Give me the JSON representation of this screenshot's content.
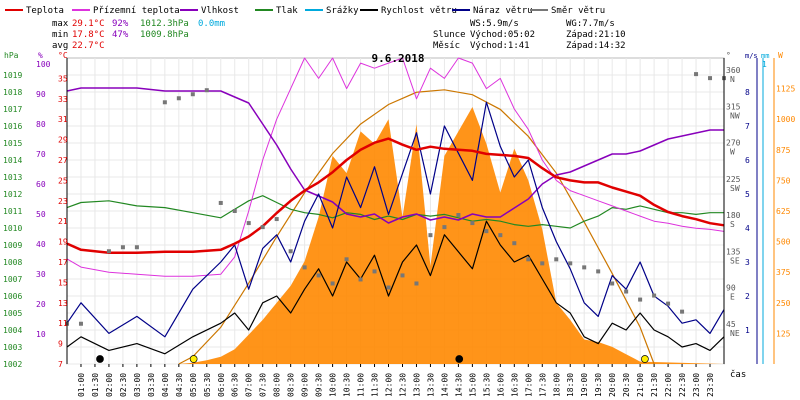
{
  "date_title": "9.6.2018",
  "legend": [
    {
      "label": "Teplota",
      "color": "#e00000"
    },
    {
      "label": "Přízemní teplota",
      "color": "#dd33dd"
    },
    {
      "label": "Vlhkost",
      "color": "#8800bb"
    },
    {
      "label": "Tlak",
      "color": "#228822"
    },
    {
      "label": "Srážky",
      "color": "#00aadd"
    },
    {
      "label": "Rychlost větru",
      "color": "#000000"
    },
    {
      "label": "Náraz větru",
      "color": "#000088"
    },
    {
      "label": "Směr větru",
      "color": "#777777"
    }
  ],
  "stats": {
    "max": {
      "label": "max",
      "temp": "29.1°C",
      "hum": "92%",
      "press": "1012.3hPa",
      "rain": "0.0mm"
    },
    "min": {
      "label": "min",
      "temp": "17.8°C",
      "hum": "47%",
      "press": "1009.8hPa"
    },
    "avg": {
      "label": "avg",
      "temp": "22.7°C"
    }
  },
  "wind_info": {
    "ws": "WS:5.9m/s",
    "wg": "WG:7.7m/s"
  },
  "sun": {
    "label": "Slunce",
    "rise": "Východ:05:02",
    "set": "Západ:21:10"
  },
  "moon": {
    "label": "Měsíc",
    "rise": "Východ:1:41",
    "set": "Západ:14:32"
  },
  "colors": {
    "temp": "#e00000",
    "ground": "#dd33dd",
    "hum": "#8800bb",
    "press": "#228822",
    "rain": "#00aadd",
    "wind": "#000000",
    "gust": "#000088",
    "dir": "#777777",
    "solar": "#ff8800",
    "grid": "#e8e8e8"
  },
  "chart_data": {
    "type": "line",
    "title": "9.6.2018",
    "xlabel": "čas",
    "x_ticks": [
      "01:00",
      "01:30",
      "02:00",
      "02:30",
      "03:00",
      "03:30",
      "04:00",
      "04:30",
      "05:00",
      "05:30",
      "06:00",
      "06:30",
      "07:00",
      "07:30",
      "08:00",
      "08:30",
      "09:00",
      "09:30",
      "10:00",
      "10:30",
      "11:00",
      "11:30",
      "12:00",
      "12:30",
      "13:00",
      "13:30",
      "14:00",
      "14:30",
      "15:00",
      "15:30",
      "16:00",
      "16:30",
      "17:00",
      "17:30",
      "18:00",
      "18:30",
      "19:00",
      "19:30",
      "20:00",
      "20:30",
      "21:00",
      "21:30",
      "22:00",
      "22:30",
      "23:00",
      "23:30"
    ],
    "axes": {
      "pressure": {
        "unit": "hPa",
        "range": [
          1002,
          1020
        ],
        "ticks": [
          "1002",
          "1003",
          "1004",
          "1005",
          "1006",
          "1007",
          "1008",
          "1009",
          "1010",
          "1011",
          "1012",
          "1013",
          "1014",
          "1015",
          "1016",
          "1017",
          "1018",
          "1019"
        ]
      },
      "humidity": {
        "unit": "%",
        "range": [
          0,
          102
        ],
        "ticks": [
          "10",
          "20",
          "30",
          "40",
          "50",
          "60",
          "70",
          "80",
          "90",
          "100"
        ]
      },
      "temperature": {
        "unit": "°C",
        "range": [
          7,
          37
        ],
        "ticks": [
          "7",
          "9",
          "11",
          "13",
          "15",
          "17",
          "19",
          "21",
          "23",
          "25",
          "27",
          "29",
          "31",
          "33",
          "35"
        ]
      },
      "direction": {
        "unit": "°",
        "range": [
          0,
          380
        ],
        "ticks": [
          {
            "v": "45",
            "d": "NE"
          },
          {
            "v": "90",
            "d": "E"
          },
          {
            "v": "135",
            "d": "SE"
          },
          {
            "v": "180",
            "d": "S"
          },
          {
            "v": "225",
            "d": "SW"
          },
          {
            "v": "270",
            "d": "W"
          },
          {
            "v": "315",
            "d": "NW"
          },
          {
            "v": "360",
            "d": "N"
          }
        ]
      },
      "wind": {
        "unit": "m/s",
        "range": [
          0,
          9
        ],
        "ticks": [
          "1",
          "2",
          "3",
          "4",
          "5",
          "6",
          "7",
          "8"
        ]
      },
      "rain": {
        "unit": "mm",
        "range": [
          0,
          1
        ],
        "ticks": [
          "1"
        ]
      },
      "solar": {
        "unit": "W",
        "range": [
          0,
          1250
        ],
        "ticks": [
          "125",
          "250",
          "375",
          "500",
          "625",
          "750",
          "875",
          "1000",
          "1125"
        ]
      }
    },
    "series": [
      {
        "name": "Teplota",
        "axis": "temperature",
        "x": [
          0,
          1,
          2,
          3,
          4,
          5,
          6,
          6.5,
          7,
          7.5,
          8,
          8.5,
          9,
          9.5,
          10,
          10.5,
          11,
          11.5,
          12,
          12.5,
          13,
          13.5,
          14,
          14.5,
          15,
          15.5,
          16,
          16.5,
          17,
          17.5,
          18,
          18.5,
          19,
          19.5,
          20,
          20.5,
          21,
          21.5,
          22,
          22.5,
          23,
          23.5,
          24
        ],
        "y": [
          18.8,
          18.2,
          17.9,
          17.9,
          18.0,
          18.0,
          18.2,
          18.8,
          19.5,
          20.5,
          21.8,
          23.0,
          24.0,
          24.8,
          25.8,
          27.0,
          28.0,
          28.7,
          29.1,
          28.5,
          28.0,
          28.3,
          28.1,
          28.0,
          27.9,
          27.6,
          27.5,
          27.4,
          27.2,
          26.2,
          25.3,
          25.0,
          24.8,
          24.8,
          24.3,
          23.9,
          23.5,
          22.6,
          21.9,
          21.5,
          21.2,
          20.8,
          20.6
        ]
      },
      {
        "name": "Přízemní teplota",
        "axis": "temperature",
        "x": [
          0,
          1,
          2,
          3,
          4,
          5,
          6,
          6.5,
          7,
          7.5,
          8,
          8.5,
          9,
          9.5,
          10,
          10.5,
          11,
          11.5,
          12,
          12.5,
          13,
          13.5,
          14,
          14.5,
          15,
          15.5,
          16,
          16.5,
          17,
          17.5,
          18,
          18.5,
          19,
          19.5,
          20,
          20.5,
          21,
          21.5,
          22,
          22.5,
          23,
          23.5,
          24
        ],
        "y": [
          17.3,
          16.5,
          16.0,
          15.8,
          15.6,
          15.6,
          15.8,
          17.5,
          22.0,
          27.0,
          31.0,
          34.0,
          37.0,
          35.0,
          37.0,
          34.0,
          36.5,
          36.0,
          36.5,
          37.0,
          33.0,
          36.0,
          35.0,
          37.0,
          36.5,
          34.0,
          35.0,
          32.0,
          30.0,
          27.0,
          25.0,
          24.0,
          23.5,
          23.0,
          22.5,
          22.0,
          21.5,
          21.0,
          20.8,
          20.5,
          20.3,
          20.2,
          20.0
        ]
      },
      {
        "name": "Vlhkost",
        "axis": "humidity",
        "x": [
          0,
          1,
          2,
          3,
          4,
          5,
          6,
          6.5,
          7,
          7.5,
          8,
          8.5,
          9,
          9.5,
          10,
          10.5,
          11,
          11.5,
          12,
          12.5,
          13,
          13.5,
          14,
          14.5,
          15,
          15.5,
          16,
          16.5,
          17,
          17.5,
          18,
          18.5,
          19,
          19.5,
          20,
          20.5,
          21,
          21.5,
          22,
          22.5,
          23,
          23.5,
          24
        ],
        "y": [
          91,
          92,
          92,
          92,
          91,
          91,
          91,
          89,
          87,
          80,
          73,
          65,
          58,
          56,
          54,
          50,
          49,
          50,
          47,
          49,
          50,
          48,
          49,
          48,
          50,
          49,
          49,
          52,
          55,
          60,
          63,
          64,
          66,
          68,
          70,
          70,
          71,
          73,
          75,
          76,
          77,
          78,
          78
        ]
      },
      {
        "name": "Tlak",
        "axis": "pressure",
        "x": [
          0,
          1,
          2,
          3,
          4,
          5,
          6,
          6.5,
          7,
          7.5,
          8,
          8.5,
          9,
          9.5,
          10,
          10.5,
          11,
          11.5,
          12,
          12.5,
          13,
          13.5,
          14,
          14.5,
          15,
          15.5,
          16,
          16.5,
          17,
          17.5,
          18,
          18.5,
          19,
          19.5,
          20,
          20.5,
          21,
          21.5,
          22,
          22.5,
          23,
          23.5,
          24
        ],
        "y": [
          1011.2,
          1011.5,
          1011.6,
          1011.3,
          1011.2,
          1010.9,
          1010.6,
          1011.1,
          1011.6,
          1011.9,
          1011.5,
          1011.1,
          1010.9,
          1010.8,
          1010.6,
          1010.9,
          1010.8,
          1010.5,
          1010.7,
          1010.5,
          1010.8,
          1010.7,
          1010.8,
          1010.6,
          1010.4,
          1010.5,
          1010.4,
          1010.2,
          1010.1,
          1010.2,
          1010.1,
          1010.0,
          1010.4,
          1010.7,
          1011.2,
          1011.1,
          1011.3,
          1011.1,
          1010.9,
          1010.9,
          1010.8,
          1010.9,
          1010.9
        ]
      },
      {
        "name": "Rychlost větru",
        "axis": "wind",
        "x": [
          0,
          1,
          2,
          3,
          4,
          5,
          6,
          6.5,
          7,
          7.5,
          8,
          8.5,
          9,
          9.5,
          10,
          10.5,
          11,
          11.5,
          12,
          12.5,
          13,
          13.5,
          14,
          14.5,
          15,
          15.5,
          16,
          16.5,
          17,
          17.5,
          18,
          18.5,
          19,
          19.5,
          20,
          20.5,
          21,
          21.5,
          22,
          22.5,
          23,
          23.5,
          24
        ],
        "y": [
          0.5,
          0.8,
          0.4,
          0.6,
          0.3,
          0.8,
          1.2,
          1.5,
          1.0,
          1.8,
          2.0,
          1.5,
          2.2,
          2.8,
          2.0,
          3.0,
          2.5,
          3.2,
          2.0,
          3.0,
          3.5,
          2.6,
          3.8,
          3.3,
          2.8,
          4.2,
          3.5,
          3.0,
          3.2,
          2.5,
          1.8,
          1.5,
          0.8,
          0.6,
          1.2,
          1.0,
          1.5,
          1.0,
          0.8,
          0.5,
          0.6,
          0.4,
          0.8
        ]
      },
      {
        "name": "Náraz větru",
        "axis": "wind",
        "x": [
          0,
          1,
          2,
          3,
          4,
          5,
          6,
          6.5,
          7,
          7.5,
          8,
          8.5,
          9,
          9.5,
          10,
          10.5,
          11,
          11.5,
          12,
          12.5,
          13,
          13.5,
          14,
          14.5,
          15,
          15.5,
          16,
          16.5,
          17,
          17.5,
          18,
          18.5,
          19,
          19.5,
          20,
          20.5,
          21,
          21.5,
          22,
          22.5,
          23,
          23.5,
          24
        ],
        "y": [
          1.2,
          1.8,
          0.9,
          1.4,
          0.8,
          2.2,
          3.0,
          3.5,
          2.2,
          3.4,
          3.8,
          3.0,
          4.2,
          5.0,
          4.0,
          5.5,
          4.6,
          5.8,
          4.4,
          5.6,
          6.8,
          5.0,
          7.0,
          6.2,
          5.4,
          7.7,
          6.4,
          5.5,
          6.0,
          4.6,
          3.6,
          2.8,
          1.8,
          1.4,
          2.6,
          2.2,
          3.0,
          2.0,
          1.7,
          1.2,
          1.3,
          0.9,
          1.6
        ]
      },
      {
        "name": "Směr větru",
        "axis": "direction",
        "x": [
          0,
          1,
          2,
          2.5,
          3,
          4,
          4.5,
          5,
          5.5,
          6,
          6.5,
          7,
          7.5,
          8,
          8.5,
          9,
          9.5,
          10,
          10.5,
          11,
          11.5,
          12,
          12.5,
          13,
          13.5,
          14,
          14.5,
          15,
          15.5,
          16,
          16.5,
          17,
          17.5,
          18,
          18.5,
          19,
          19.5,
          20,
          20.5,
          21,
          21.5,
          22,
          22.5,
          23,
          23.5,
          24
        ],
        "y": [
          50,
          50,
          140,
          145,
          145,
          325,
          330,
          335,
          340,
          200,
          190,
          175,
          170,
          180,
          140,
          120,
          110,
          100,
          130,
          105,
          115,
          95,
          110,
          100,
          160,
          170,
          185,
          175,
          165,
          160,
          150,
          130,
          125,
          130,
          125,
          120,
          115,
          100,
          90,
          80,
          85,
          75,
          65,
          360,
          355,
          355
        ]
      },
      {
        "name": "Solar",
        "axis": "solar",
        "x": [
          0,
          4.5,
          5,
          5.5,
          6,
          6.5,
          7,
          7.5,
          8,
          8.5,
          9,
          9.5,
          10,
          10.5,
          11,
          11.5,
          12,
          12.5,
          13,
          13.5,
          14,
          14.5,
          15,
          15.5,
          16,
          16.5,
          17,
          17.5,
          18,
          18.5,
          19,
          19.5,
          20,
          20.5,
          21,
          24
        ],
        "y": [
          0,
          0,
          5,
          15,
          30,
          60,
          120,
          180,
          250,
          320,
          420,
          600,
          850,
          780,
          950,
          900,
          1000,
          600,
          980,
          400,
          850,
          950,
          1050,
          900,
          700,
          880,
          750,
          550,
          250,
          180,
          100,
          90,
          70,
          40,
          10,
          0
        ]
      },
      {
        "name": "Solar max",
        "axis": "solar",
        "x": [
          4.5,
          5,
          6,
          7,
          8,
          9,
          10,
          11,
          12,
          13,
          14,
          15,
          16,
          17,
          18,
          19,
          20,
          21,
          21.5
        ],
        "y": [
          0,
          30,
          150,
          330,
          520,
          700,
          860,
          980,
          1060,
          1110,
          1120,
          1100,
          1040,
          930,
          780,
          580,
          370,
          150,
          0
        ]
      }
    ],
    "markers": {
      "sunrise": 5.03,
      "sunset": 21.17,
      "moonrise": 1.68,
      "moonset": 14.53
    }
  }
}
